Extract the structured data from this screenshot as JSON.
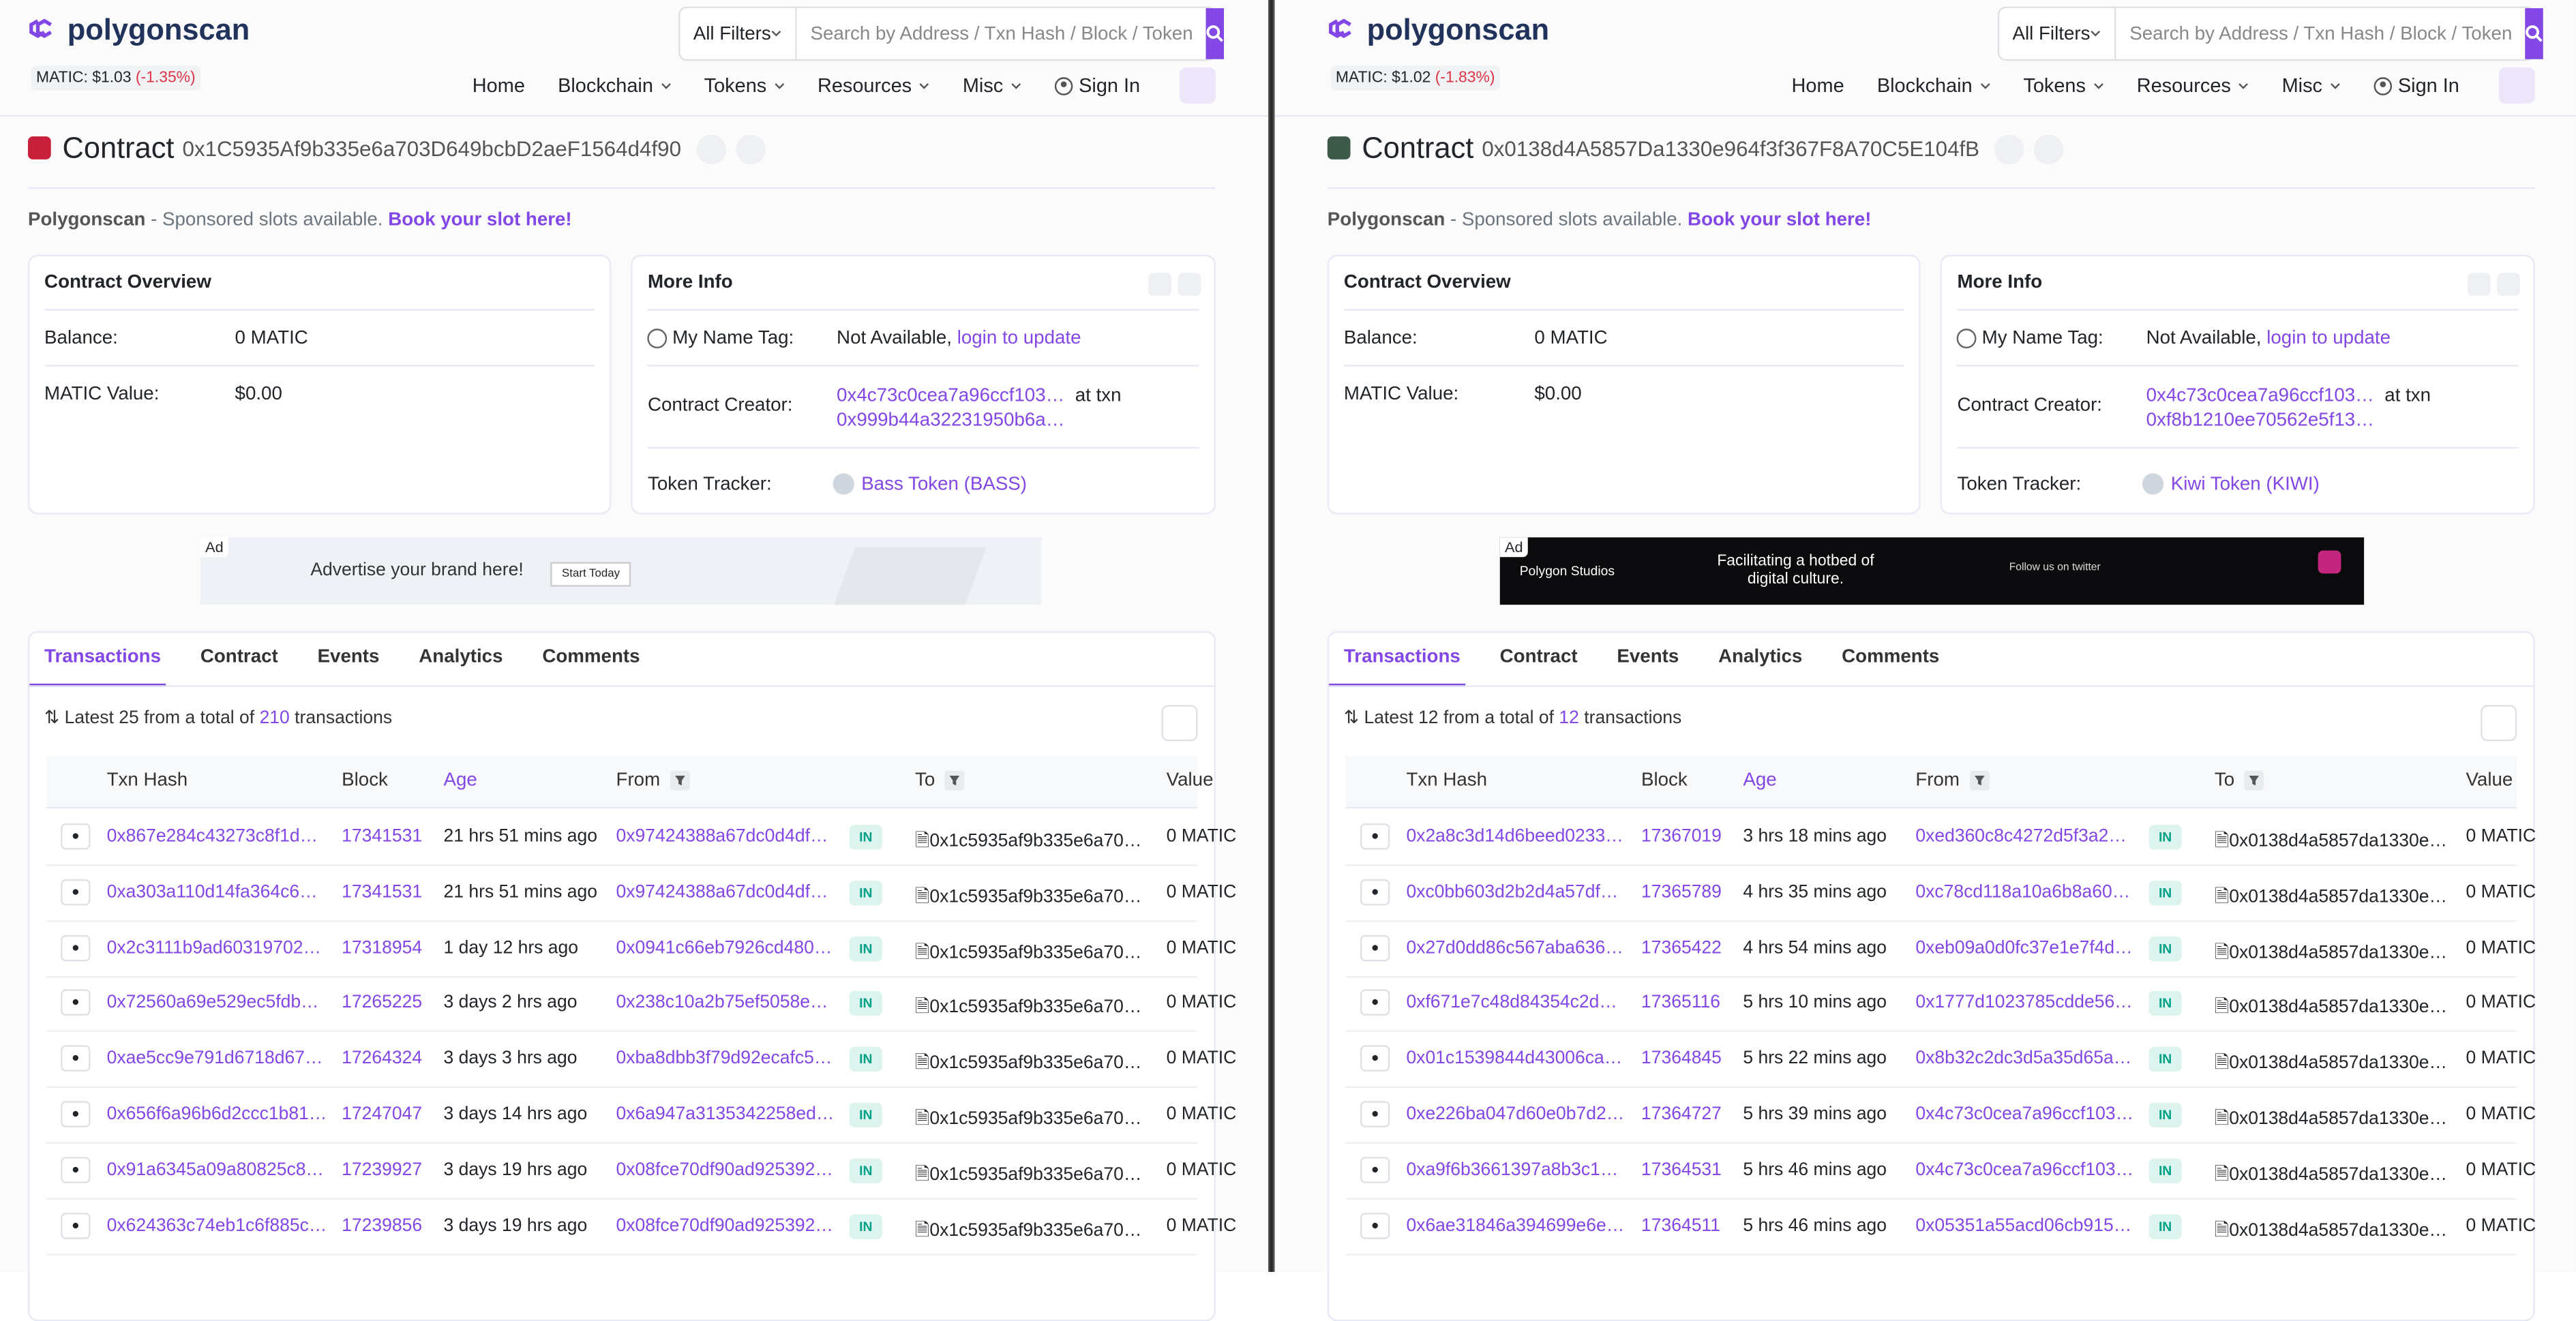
{
  "site": {
    "logo": "polygonscan",
    "filter": "All Filters",
    "search_placeholder": "Search by Address / Txn Hash / Block / Token",
    "nav": [
      "Home",
      "Blockchain",
      "Tokens",
      "Resources",
      "Misc",
      "Sign In"
    ]
  },
  "labels": {
    "contract": "Contract",
    "sponsor_brand": "Polygonscan",
    "sponsor_text": " - Sponsored slots available. ",
    "sponsor_link": "Book your slot here!",
    "overview": "Contract Overview",
    "balance": "Balance:",
    "matic_value": "MATIC Value:",
    "more_info": "More Info",
    "name_tag": "My Name Tag:",
    "not_available": "Not Available, ",
    "login": "login to update",
    "creator": "Contract Creator:",
    "at_txn": "at txn",
    "token_tracker": "Token Tracker:",
    "ad": "Ad",
    "tabs": [
      "Transactions",
      "Contract",
      "Events",
      "Analytics",
      "Comments"
    ],
    "latest": "Latest",
    "from_total": "from a total of",
    "transactions": "transactions",
    "columns": [
      "Txn Hash",
      "Block",
      "Age",
      "From",
      "To",
      "Value"
    ]
  },
  "panels": [
    {
      "price": "MATIC: $1.03",
      "change": "(-1.35%)",
      "address": "0x1C5935Af9b335e6a703D649bcbD2aeF1564d4f90",
      "balance": "0 MATIC",
      "value": "$0.00",
      "creator": "0x4c73c0cea7a96ccf103…",
      "creator_txn": "0x999b44a32231950b6a…",
      "token": "Bass Token (BASS)",
      "ad": [
        "Advertise your brand here!",
        "Start Today"
      ],
      "shown": 25,
      "total": 210,
      "rows": [
        [
          "0x867e284c43273c8f1d…",
          17341531,
          "21 hrs 51 mins ago",
          "0x97424388a67dc0d4df…",
          "IN",
          "0x1c5935af9b335e6a70…",
          "0 MATIC"
        ],
        [
          "0xa303a110d14fa364c6…",
          17341531,
          "21 hrs 51 mins ago",
          "0x97424388a67dc0d4df…",
          "IN",
          "0x1c5935af9b335e6a70…",
          "0 MATIC"
        ],
        [
          "0x2c3111b9ad60319702…",
          17318954,
          "1 day 12 hrs ago",
          "0x0941c66eb7926cd480…",
          "IN",
          "0x1c5935af9b335e6a70…",
          "0 MATIC"
        ],
        [
          "0x72560a69e529ec5fdb…",
          17265225,
          "3 days 2 hrs ago",
          "0x238c10a2b75ef5058e…",
          "IN",
          "0x1c5935af9b335e6a70…",
          "0 MATIC"
        ],
        [
          "0xae5cc9e791d6718d67…",
          17264324,
          "3 days 3 hrs ago",
          "0xba8dbb3f79d92ecafc5…",
          "IN",
          "0x1c5935af9b335e6a70…",
          "0 MATIC"
        ],
        [
          "0x656f6a96b6d2ccc1b81…",
          17247047,
          "3 days 14 hrs ago",
          "0x6a947a3135342258ed…",
          "IN",
          "0x1c5935af9b335e6a70…",
          "0 MATIC"
        ],
        [
          "0x91a6345a09a80825c8…",
          17239927,
          "3 days 19 hrs ago",
          "0x08fce70df90ad925392…",
          "IN",
          "0x1c5935af9b335e6a70…",
          "0 MATIC"
        ],
        [
          "0x624363c74eb1c6f885c…",
          17239856,
          "3 days 19 hrs ago",
          "0x08fce70df90ad925392…",
          "IN",
          "0x1c5935af9b335e6a70…",
          "0 MATIC"
        ]
      ]
    },
    {
      "price": "MATIC: $1.02",
      "change": "(-1.83%)",
      "address": "0x0138d4A5857Da1330e964f3f367F8A70C5E104fB",
      "balance": "0 MATIC",
      "value": "$0.00",
      "creator": "0x4c73c0cea7a96ccf103…",
      "creator_txn": "0xf8b1210ee70562e5f13…",
      "token": "Kiwi Token (KIWI)",
      "ad": [
        "Polygon Studios",
        "Facilitating a hotbed of digital culture.",
        "Follow us on twitter"
      ],
      "shown": 12,
      "total": 12,
      "rows": [
        [
          "0x2a8c3d14d6beed0233…",
          17367019,
          "3 hrs 18 mins ago",
          "0xed360c8c4272d5f3a2…",
          "IN",
          "0x0138d4a5857da1330e…",
          "0 MATIC"
        ],
        [
          "0xc0bb603d2b2d4a57df…",
          17365789,
          "4 hrs 35 mins ago",
          "0xc78cd118a10a6b8a60…",
          "IN",
          "0x0138d4a5857da1330e…",
          "0 MATIC"
        ],
        [
          "0x27d0dd86c567aba636…",
          17365422,
          "4 hrs 54 mins ago",
          "0xeb09a0d0fc37e1e7f4d…",
          "IN",
          "0x0138d4a5857da1330e…",
          "0 MATIC"
        ],
        [
          "0xf671e7c48d84354c2d…",
          17365116,
          "5 hrs 10 mins ago",
          "0x1777d1023785cdde56…",
          "IN",
          "0x0138d4a5857da1330e…",
          "0 MATIC"
        ],
        [
          "0x01c1539844d43006ca…",
          17364845,
          "5 hrs 22 mins ago",
          "0x8b32c2dc3d5a35d65a…",
          "IN",
          "0x0138d4a5857da1330e…",
          "0 MATIC"
        ],
        [
          "0xe226ba047d60e0b7d2…",
          17364727,
          "5 hrs 39 mins ago",
          "0x4c73c0cea7a96ccf103…",
          "IN",
          "0x0138d4a5857da1330e…",
          "0 MATIC"
        ],
        [
          "0xa9f6b3661397a8b3c1…",
          17364531,
          "5 hrs 46 mins ago",
          "0x4c73c0cea7a96ccf103…",
          "IN",
          "0x0138d4a5857da1330e…",
          "0 MATIC"
        ],
        [
          "0x6ae31846a394699e6e…",
          17364511,
          "5 hrs 46 mins ago",
          "0x05351a55acd06cb915…",
          "IN",
          "0x0138d4a5857da1330e…",
          "0 MATIC"
        ]
      ]
    }
  ]
}
